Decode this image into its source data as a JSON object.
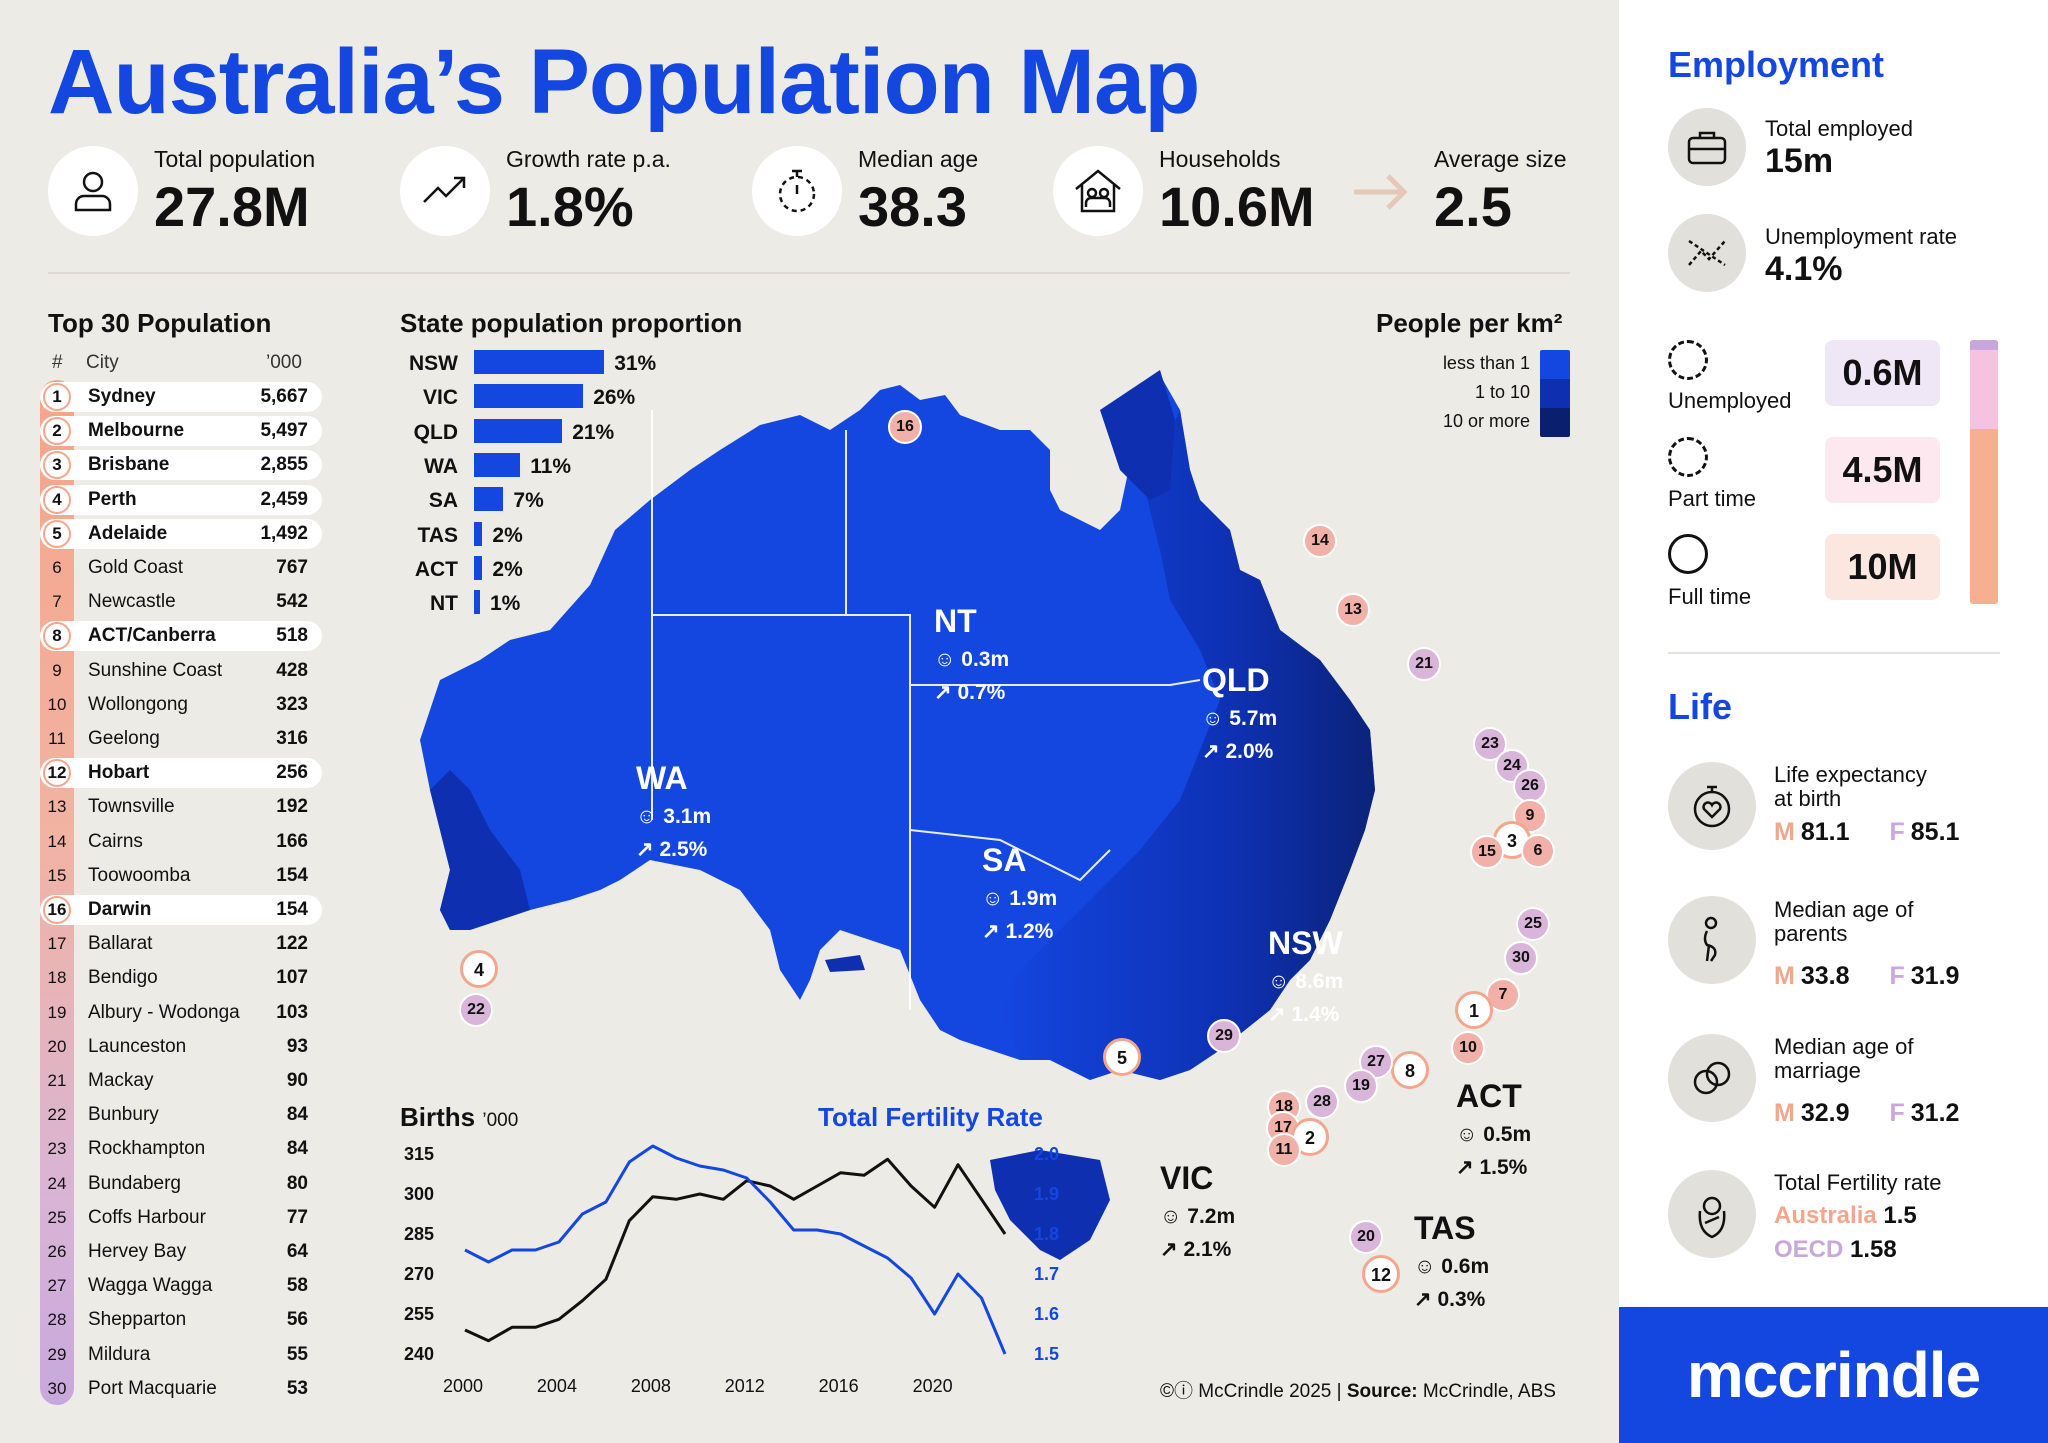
{
  "title": "Australia’s Population Map",
  "stats": {
    "total_population": {
      "label": "Total population",
      "value": "27.8M"
    },
    "growth_rate": {
      "label": "Growth rate p.a.",
      "value": "1.8%"
    },
    "median_age": {
      "label": "Median age",
      "value": "38.3"
    },
    "households": {
      "label": "Households",
      "value": "10.6M"
    },
    "average_size": {
      "label": "Average size",
      "value": "2.5"
    }
  },
  "top30": {
    "title": "Top 30 Population",
    "headers": [
      "#",
      "City",
      "’000"
    ],
    "rows": [
      {
        "rank": "1",
        "city": "Sydney",
        "pop": "5,667"
      },
      {
        "rank": "2",
        "city": "Melbourne",
        "pop": "5,497"
      },
      {
        "rank": "3",
        "city": "Brisbane",
        "pop": "2,855"
      },
      {
        "rank": "4",
        "city": "Perth",
        "pop": "2,459"
      },
      {
        "rank": "5",
        "city": "Adelaide",
        "pop": "1,492"
      },
      {
        "rank": "6",
        "city": "Gold Coast",
        "pop": "767"
      },
      {
        "rank": "7",
        "city": "Newcastle",
        "pop": "542"
      },
      {
        "rank": "8",
        "city": "ACT/Canberra",
        "pop": "518"
      },
      {
        "rank": "9",
        "city": "Sunshine Coast",
        "pop": "428"
      },
      {
        "rank": "10",
        "city": "Wollongong",
        "pop": "323"
      },
      {
        "rank": "11",
        "city": "Geelong",
        "pop": "316"
      },
      {
        "rank": "12",
        "city": "Hobart",
        "pop": "256"
      },
      {
        "rank": "13",
        "city": "Townsville",
        "pop": "192"
      },
      {
        "rank": "14",
        "city": "Cairns",
        "pop": "166"
      },
      {
        "rank": "15",
        "city": "Toowoomba",
        "pop": "154"
      },
      {
        "rank": "16",
        "city": "Darwin",
        "pop": "154"
      },
      {
        "rank": "17",
        "city": "Ballarat",
        "pop": "122"
      },
      {
        "rank": "18",
        "city": "Bendigo",
        "pop": "107"
      },
      {
        "rank": "19",
        "city": "Albury - Wodonga",
        "pop": "103"
      },
      {
        "rank": "20",
        "city": "Launceston",
        "pop": "93"
      },
      {
        "rank": "21",
        "city": "Mackay",
        "pop": "90"
      },
      {
        "rank": "22",
        "city": "Bunbury",
        "pop": "84"
      },
      {
        "rank": "23",
        "city": "Rockhampton",
        "pop": "84"
      },
      {
        "rank": "24",
        "city": "Bundaberg",
        "pop": "80"
      },
      {
        "rank": "25",
        "city": "Coffs Harbour",
        "pop": "77"
      },
      {
        "rank": "26",
        "city": "Hervey Bay",
        "pop": "64"
      },
      {
        "rank": "27",
        "city": "Wagga Wagga",
        "pop": "58"
      },
      {
        "rank": "28",
        "city": "Shepparton",
        "pop": "56"
      },
      {
        "rank": "29",
        "city": "Mildura",
        "pop": "55"
      },
      {
        "rank": "30",
        "city": "Port Macquarie",
        "pop": "53"
      }
    ]
  },
  "state_proportion": {
    "title": "State population proportion",
    "rows": [
      {
        "state": "NSW",
        "pct": "31%",
        "value": 31
      },
      {
        "state": "VIC",
        "pct": "26%",
        "value": 26
      },
      {
        "state": "QLD",
        "pct": "21%",
        "value": 21
      },
      {
        "state": "WA",
        "pct": "11%",
        "value": 11
      },
      {
        "state": "SA",
        "pct": "7%",
        "value": 7
      },
      {
        "state": "TAS",
        "pct": "2%",
        "value": 2
      },
      {
        "state": "ACT",
        "pct": "2%",
        "value": 2
      },
      {
        "state": "NT",
        "pct": "1%",
        "value": 1
      }
    ]
  },
  "density_legend": {
    "title": "People per km²",
    "items": [
      {
        "label": "less than 1",
        "color": "#1446e0"
      },
      {
        "label": "1 to 10",
        "color": "#0d2fb0"
      },
      {
        "label": "10 or more",
        "color": "#0a1f6e"
      }
    ]
  },
  "states": {
    "WA": {
      "name": "WA",
      "pop": "3.1m",
      "growth": "2.5%"
    },
    "NT": {
      "name": "NT",
      "pop": "0.3m",
      "growth": "0.7%"
    },
    "QLD": {
      "name": "QLD",
      "pop": "5.7m",
      "growth": "2.0%"
    },
    "SA": {
      "name": "SA",
      "pop": "1.9m",
      "growth": "1.2%"
    },
    "NSW": {
      "name": "NSW",
      "pop": "8.6m",
      "growth": "1.4%"
    },
    "ACT": {
      "name": "ACT",
      "pop": "0.5m",
      "growth": "1.5%"
    },
    "VIC": {
      "name": "VIC",
      "pop": "7.2m",
      "growth": "2.1%"
    },
    "TAS": {
      "name": "TAS",
      "pop": "0.6m",
      "growth": "0.3%"
    }
  },
  "chart_data": {
    "type": "line",
    "title_left": "Births",
    "title_left_unit": "’000",
    "title_right": "Total Fertility Rate",
    "x_ticks": [
      "2000",
      "2004",
      "2008",
      "2012",
      "2016",
      "2020"
    ],
    "y_left_ticks": [
      "315",
      "300",
      "285",
      "270",
      "255",
      "240"
    ],
    "y_right_ticks": [
      "2.0",
      "1.9",
      "1.8",
      "1.7",
      "1.6",
      "1.5"
    ],
    "ylim_left": [
      240,
      315
    ],
    "ylim_right": [
      1.5,
      2.0
    ],
    "xlim": [
      2000,
      2023
    ],
    "series": [
      {
        "name": "Births",
        "axis": "left",
        "color": "#111111",
        "x": [
          2000,
          2001,
          2002,
          2003,
          2004,
          2005,
          2006,
          2007,
          2008,
          2009,
          2010,
          2011,
          2012,
          2013,
          2014,
          2015,
          2016,
          2017,
          2018,
          2019,
          2020,
          2021,
          2022,
          2023
        ],
        "y": [
          249,
          245,
          250,
          250,
          253,
          260,
          268,
          290,
          299,
          298,
          300,
          298,
          305,
          303,
          298,
          303,
          308,
          307,
          313,
          303,
          295,
          311,
          298,
          285
        ]
      },
      {
        "name": "Total Fertility Rate",
        "axis": "right",
        "color": "#1446e0",
        "x": [
          2000,
          2001,
          2002,
          2003,
          2004,
          2005,
          2006,
          2007,
          2008,
          2009,
          2010,
          2011,
          2012,
          2013,
          2014,
          2015,
          2016,
          2017,
          2018,
          2019,
          2020,
          2021,
          2022,
          2023
        ],
        "y": [
          1.76,
          1.73,
          1.76,
          1.76,
          1.78,
          1.85,
          1.88,
          1.98,
          2.02,
          1.99,
          1.97,
          1.96,
          1.94,
          1.88,
          1.81,
          1.81,
          1.8,
          1.77,
          1.74,
          1.69,
          1.6,
          1.7,
          1.64,
          1.5
        ]
      }
    ]
  },
  "copyright": "McCrindle 2025",
  "source_label": "Source:",
  "source_value": "McCrindle, ABS",
  "employment": {
    "title": "Employment",
    "total_employed": {
      "label": "Total employed",
      "value": "15m"
    },
    "unemployment_rate": {
      "label": "Unemployment rate",
      "value": "4.1%"
    },
    "unemployed": {
      "label": "Unemployed",
      "value": "0.6M"
    },
    "part_time": {
      "label": "Part time",
      "value": "4.5M"
    },
    "full_time": {
      "label": "Full time",
      "value": "10M"
    }
  },
  "life": {
    "title": "Life",
    "life_expectancy": {
      "label_1": "Life expectancy",
      "label_2": "at birth",
      "m": "81.1",
      "f": "85.1"
    },
    "median_age_parents": {
      "label_1": "Median age of",
      "label_2": "parents",
      "m": "33.8",
      "f": "31.9"
    },
    "median_age_marriage": {
      "label_1": "Median age of",
      "label_2": "marriage",
      "m": "32.9",
      "f": "31.2"
    },
    "fertility": {
      "label": "Total Fertility rate",
      "aus_label": "Australia",
      "aus_value": "1.5",
      "oecd_label": "OECD",
      "oecd_value": "1.58"
    },
    "m_letter": "M",
    "f_letter": "F"
  },
  "brand": "mccrindle"
}
